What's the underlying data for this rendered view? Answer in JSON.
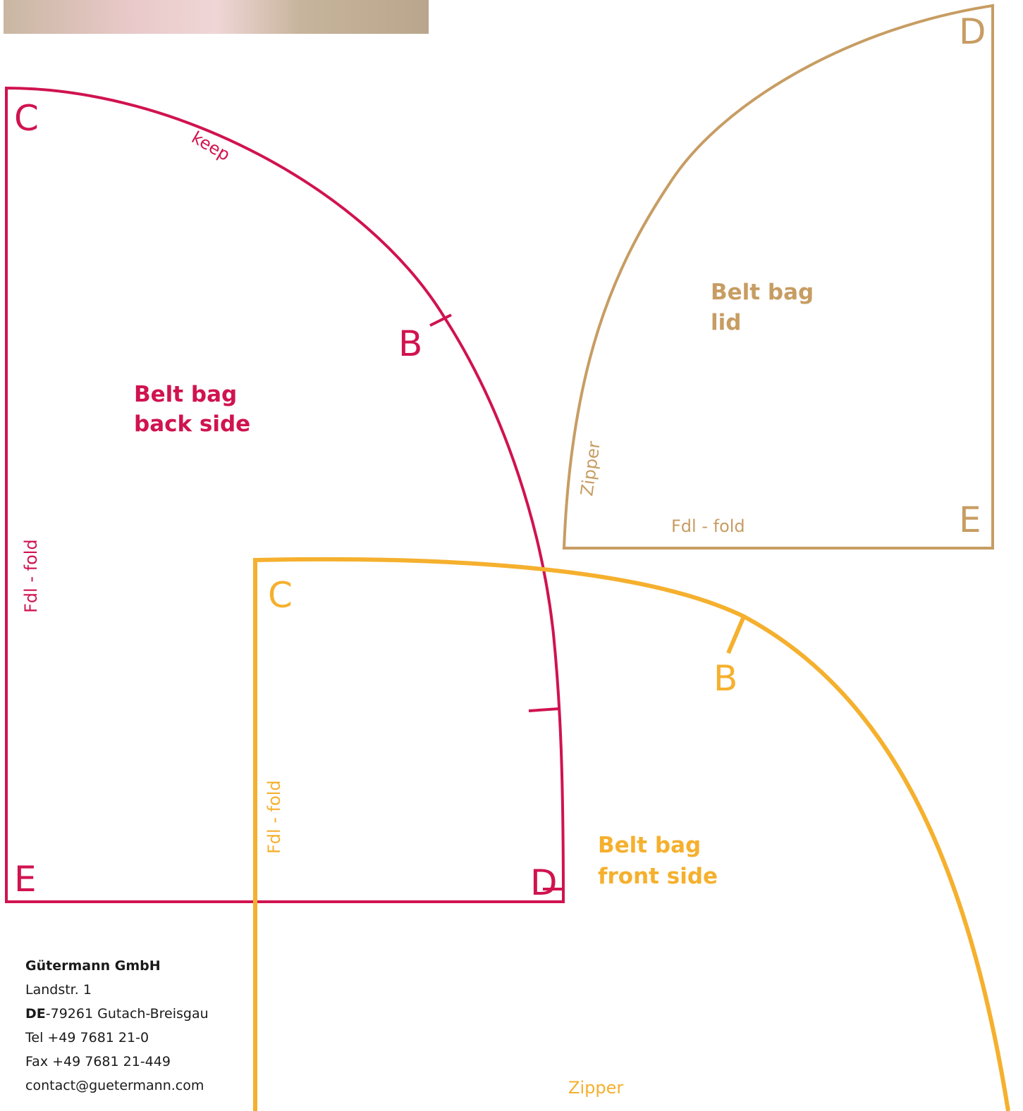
{
  "back_piece": {
    "title_line1": "Belt bag",
    "title_line2": "back side",
    "mark_c": "C",
    "mark_b": "B",
    "mark_e": "E",
    "mark_d": "D",
    "edge_top": "keep",
    "edge_left": "Fdl - fold"
  },
  "lid_piece": {
    "title_line1": "Belt bag",
    "title_line2": "lid",
    "mark_d": "D",
    "mark_e": "E",
    "edge_curve": "Zipper",
    "edge_bottom": "Fdl - fold"
  },
  "front_piece": {
    "title_line1": "Belt bag",
    "title_line2": "front side",
    "mark_c": "C",
    "mark_b": "B",
    "edge_left": "Fdl - fold",
    "edge_bottom": "Zipper"
  },
  "footer": {
    "company": "Gütermann GmbH",
    "street": "Landstr. 1",
    "country": "DE",
    "city": "-79261 Gutach-Breisgau",
    "tel": "Tel +49 7681 21-0",
    "fax": "Fax +49 7681 21-449",
    "email": "contact@guetermann.com"
  }
}
